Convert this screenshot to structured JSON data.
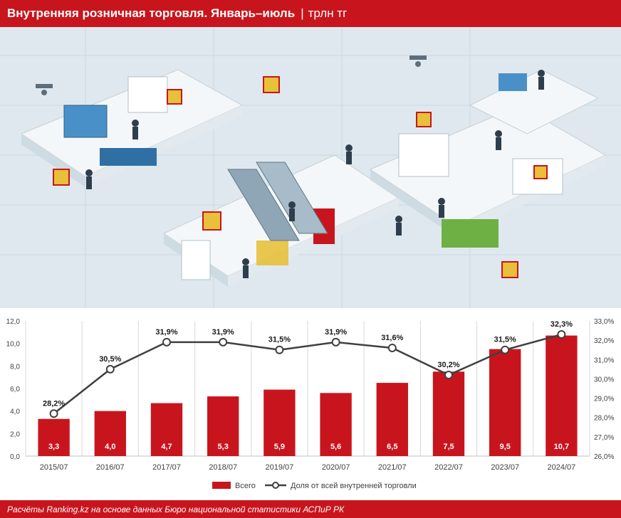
{
  "header": {
    "title": "Внутренняя розничная торговля. Январь–июль",
    "separator": "|",
    "unit": "трлн тг"
  },
  "footer": {
    "source": "Расчёты Ranking.kz на основе данных Бюро национальной статистики АСПиР РК"
  },
  "colors": {
    "accent_red": "#c8151d",
    "bar": "#c8151d",
    "line": "#404040",
    "marker_fill": "#ffffff"
  },
  "illustration": {
    "description_icon": "isometric-shopping-mall-illustration"
  },
  "chart_data": {
    "type": "bar",
    "categories": [
      "2015/07",
      "2016/07",
      "2017/07",
      "2018/07",
      "2019/07",
      "2020/07",
      "2021/07",
      "2022/07",
      "2023/07",
      "2024/07"
    ],
    "series": [
      {
        "name": "Всего",
        "type": "bar",
        "axis": "left",
        "values": [
          3.3,
          4.0,
          4.7,
          5.3,
          5.9,
          5.6,
          6.5,
          7.5,
          9.5,
          10.7
        ],
        "labels": [
          "3,3",
          "4,0",
          "4,7",
          "5,3",
          "5,9",
          "5,6",
          "6,5",
          "7,5",
          "9,5",
          "10,7"
        ]
      },
      {
        "name": "Доля от всей внутренней торговли",
        "type": "line",
        "axis": "right",
        "values": [
          28.2,
          30.5,
          31.9,
          31.9,
          31.5,
          31.9,
          31.6,
          30.2,
          31.5,
          32.3
        ],
        "labels": [
          "28,2%",
          "30,5%",
          "31,9%",
          "31,9%",
          "31,5%",
          "31,9%",
          "31,6%",
          "30,2%",
          "31,5%",
          "32,3%"
        ]
      }
    ],
    "y_left": {
      "ylim": [
        0,
        12
      ],
      "ticks": [
        "0,0",
        "2,0",
        "4,0",
        "6,0",
        "8,0",
        "10,0",
        "12,0"
      ]
    },
    "y_right": {
      "ylim": [
        26,
        33
      ],
      "ticks": [
        "26,0%",
        "27,0%",
        "28,0%",
        "29,0%",
        "30,0%",
        "31,0%",
        "32,0%",
        "33,0%"
      ]
    },
    "grid": "vertical",
    "legend": "bottom-center"
  }
}
